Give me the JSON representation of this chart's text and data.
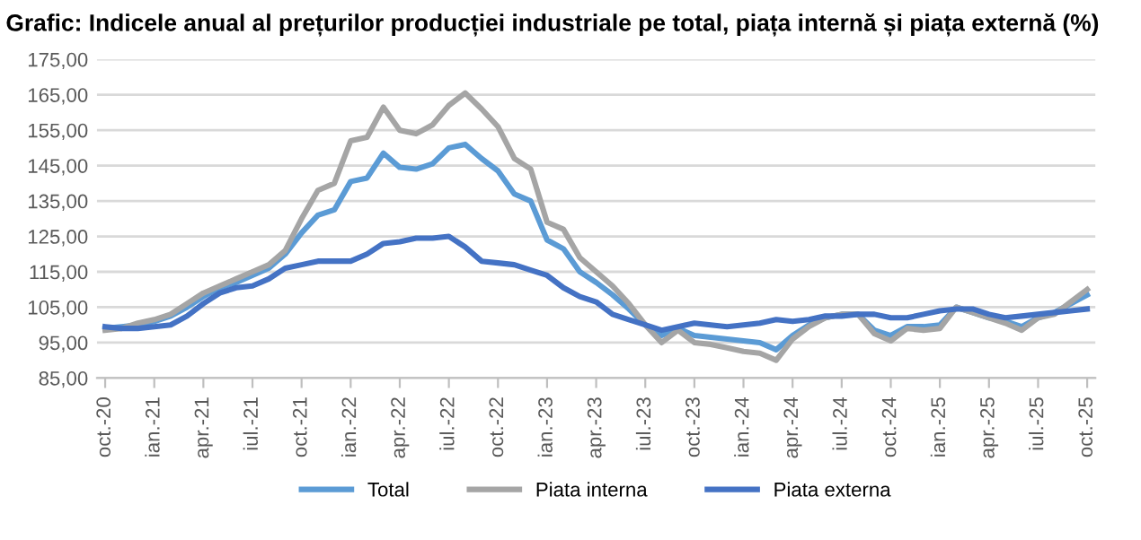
{
  "chart_data": {
    "type": "line",
    "title": "Grafic: Indicele anual al prețurilor producției industriale pe total, piața internă și piața externă (%)",
    "categories": [
      "oct.-20",
      null,
      null,
      "ian.-21",
      null,
      null,
      "apr.-21",
      null,
      null,
      "iul.-21",
      null,
      null,
      "oct.-21",
      null,
      null,
      "ian.-22",
      null,
      null,
      "apr.-22",
      null,
      null,
      "iul.-22",
      null,
      null,
      "oct.-22",
      null,
      null,
      "ian.-23",
      null,
      null,
      "apr.-23",
      null,
      null,
      "iul.-23",
      null,
      null,
      "oct.-23",
      null,
      null,
      "ian.-24",
      null,
      null,
      "apr.-24",
      null,
      null,
      "iul.-24",
      null,
      null,
      "oct.-24",
      null,
      null,
      "ian.-25",
      null,
      null,
      "apr.-25",
      null,
      null,
      "iul.-25",
      null,
      null,
      "oct.-25"
    ],
    "series": [
      {
        "name": "Total",
        "color": "#5b9bd5",
        "values": [
          99,
          99.5,
          100,
          101,
          102.5,
          105,
          108,
          110.5,
          112,
          114,
          116,
          120,
          126,
          131,
          132.5,
          140.5,
          141.5,
          148.5,
          144.5,
          144,
          145.5,
          150,
          151,
          147,
          143.5,
          137,
          135,
          124,
          121.5,
          115,
          112,
          108.5,
          104.5,
          100,
          97,
          99,
          97,
          96.5,
          96,
          95.5,
          95,
          93,
          97,
          100,
          102,
          103,
          103,
          98.5,
          97,
          99.5,
          99.5,
          100,
          105,
          103.5,
          102,
          101,
          99.5,
          102,
          103.5,
          106,
          108.5
        ]
      },
      {
        "name": "Piata interna",
        "color": "#a5a5a5",
        "values": [
          98.5,
          99,
          100.5,
          101.5,
          103,
          106,
          109,
          111,
          113,
          115,
          117,
          121,
          130,
          138,
          140,
          152,
          153,
          161.5,
          155,
          154,
          156.5,
          162,
          165.5,
          161,
          156,
          147,
          144,
          129,
          127,
          119,
          115,
          111,
          106,
          100,
          95,
          98.5,
          95,
          94.5,
          93.5,
          92.5,
          92,
          90,
          96,
          99.5,
          102,
          103,
          103,
          97.5,
          95.5,
          99,
          98.5,
          99,
          105,
          103.5,
          102,
          100.5,
          98.5,
          102,
          103,
          106.5,
          110
        ]
      },
      {
        "name": "Piata externa",
        "color": "#4472c4",
        "values": [
          99.5,
          99,
          99,
          99.5,
          100,
          102.5,
          106,
          109,
          110.5,
          111,
          113,
          116,
          117,
          118,
          118,
          118,
          120,
          123,
          123.5,
          124.5,
          124.5,
          125,
          122,
          118,
          117.5,
          117,
          115.5,
          114,
          110.5,
          108,
          106.5,
          103,
          101.5,
          100,
          98.5,
          99.5,
          100.5,
          100,
          99.5,
          100,
          100.5,
          101.5,
          101,
          101.5,
          102.5,
          102.5,
          103,
          103,
          102,
          102,
          103,
          104,
          104.5,
          104.5,
          103,
          102,
          102.5,
          103,
          103.5,
          104,
          104.5
        ]
      }
    ],
    "ylim": [
      85,
      175
    ],
    "yticks": [
      {
        "value": 85,
        "label": "85,00"
      },
      {
        "value": 95,
        "label": "95,00"
      },
      {
        "value": 105,
        "label": "105,00"
      },
      {
        "value": 115,
        "label": "115,00"
      },
      {
        "value": 125,
        "label": "125,00"
      },
      {
        "value": 135,
        "label": "135,00"
      },
      {
        "value": 145,
        "label": "145,00"
      },
      {
        "value": 155,
        "label": "155,00"
      },
      {
        "value": 165,
        "label": "165,00"
      },
      {
        "value": 175,
        "label": "175,00"
      }
    ],
    "grid": "y",
    "legend": "bottom",
    "marker": "none",
    "line_style": "solid"
  }
}
